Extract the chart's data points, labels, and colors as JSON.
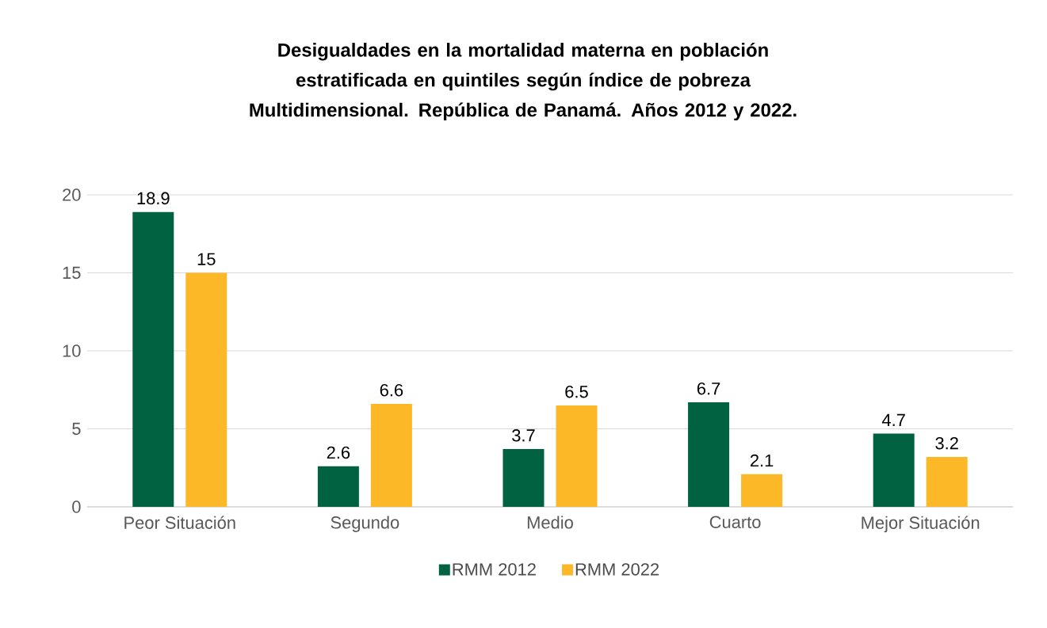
{
  "chart_data": {
    "type": "bar",
    "title": "Desigualdades en la mortalidad materna en población estratificada en quintiles según índice de pobreza Multidimensional. República de Panamá. Años 2012 y 2022.",
    "categories": [
      "Peor Situación",
      "Segundo",
      "Medio",
      "Cuarto",
      "Mejor Situación"
    ],
    "series": [
      {
        "name": "RMM 2012",
        "color": "#006241",
        "values": [
          18.9,
          2.6,
          3.7,
          6.7,
          4.7
        ]
      },
      {
        "name": "RMM 2022",
        "color": "#fdb827",
        "values": [
          15,
          6.6,
          6.5,
          2.1,
          3.2
        ]
      }
    ],
    "ylim": [
      0,
      20
    ],
    "yticks": [
      0,
      5,
      10,
      15,
      20
    ],
    "grid": "y",
    "legend": "bottom",
    "data_labels": true
  }
}
